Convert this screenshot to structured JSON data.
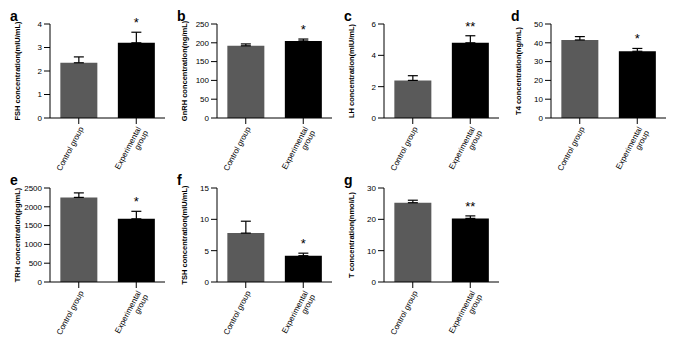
{
  "chart_data": [
    {
      "type": "bar",
      "title": "a",
      "y_label": "FSH concentration(mIU/mL)",
      "categories": [
        "Control group",
        "Experimental group"
      ],
      "values": [
        2.35,
        3.2
      ],
      "errors": [
        0.25,
        0.45
      ],
      "colors": [
        "#5a5a5a",
        "#000000"
      ],
      "ylim": [
        0,
        4
      ],
      "yticks": [
        0,
        1,
        2,
        3,
        4
      ],
      "annotations": [
        {
          "category": "Experimental group",
          "text": "*"
        }
      ]
    },
    {
      "type": "bar",
      "title": "b",
      "y_label": "GnRH concentration(ng/mL)",
      "categories": [
        "Control group",
        "Experimental group"
      ],
      "values": [
        192,
        205
      ],
      "errors": [
        5,
        5
      ],
      "colors": [
        "#5a5a5a",
        "#000000"
      ],
      "ylim": [
        0,
        250
      ],
      "yticks": [
        0,
        50,
        100,
        150,
        200,
        250
      ],
      "annotations": [
        {
          "category": "Experimental group",
          "text": "*"
        }
      ]
    },
    {
      "type": "bar",
      "title": "c",
      "y_label": "LH concentration(mIU/mL)",
      "categories": [
        "Control group",
        "Experimental group"
      ],
      "values": [
        2.4,
        4.8
      ],
      "errors": [
        0.3,
        0.45
      ],
      "colors": [
        "#5a5a5a",
        "#000000"
      ],
      "ylim": [
        0,
        6
      ],
      "yticks": [
        0,
        2,
        4,
        6
      ],
      "annotations": [
        {
          "category": "Experimental group",
          "text": "**"
        }
      ]
    },
    {
      "type": "bar",
      "title": "d",
      "y_label": "T4 concentration(ng/mL)",
      "categories": [
        "Control group",
        "Experimental group"
      ],
      "values": [
        41.5,
        35.5
      ],
      "errors": [
        1.8,
        1.5
      ],
      "colors": [
        "#5a5a5a",
        "#000000"
      ],
      "ylim": [
        0,
        50
      ],
      "yticks": [
        0,
        10,
        20,
        30,
        40,
        50
      ],
      "annotations": [
        {
          "category": "Experimental group",
          "text": "*"
        }
      ]
    },
    {
      "type": "bar",
      "title": "e",
      "y_label": "TRH concentration(pg/mL)",
      "categories": [
        "Control group",
        "Experimental group"
      ],
      "values": [
        2250,
        1680
      ],
      "errors": [
        120,
        200
      ],
      "colors": [
        "#5a5a5a",
        "#000000"
      ],
      "ylim": [
        0,
        2500
      ],
      "yticks": [
        0,
        500,
        1000,
        1500,
        2000,
        2500
      ],
      "annotations": [
        {
          "category": "Experimental group",
          "text": "*"
        }
      ]
    },
    {
      "type": "bar",
      "title": "f",
      "y_label": "TSH concentration(mIU/mL)",
      "categories": [
        "Control group",
        "Experimental group"
      ],
      "values": [
        7.8,
        4.2
      ],
      "errors": [
        1.9,
        0.4
      ],
      "colors": [
        "#5a5a5a",
        "#000000"
      ],
      "ylim": [
        0,
        15
      ],
      "yticks": [
        0,
        5,
        10,
        15
      ],
      "annotations": [
        {
          "category": "Experimental group",
          "text": "*"
        }
      ]
    },
    {
      "type": "bar",
      "title": "g",
      "y_label": "T concentration(nmol/L)",
      "categories": [
        "Control group",
        "Experimental group"
      ],
      "values": [
        25.3,
        20.3
      ],
      "errors": [
        0.8,
        0.8
      ],
      "colors": [
        "#5a5a5a",
        "#000000"
      ],
      "ylim": [
        0,
        30
      ],
      "yticks": [
        0,
        10,
        20,
        30
      ],
      "annotations": [
        {
          "category": "Experimental group",
          "text": "**"
        }
      ]
    }
  ]
}
